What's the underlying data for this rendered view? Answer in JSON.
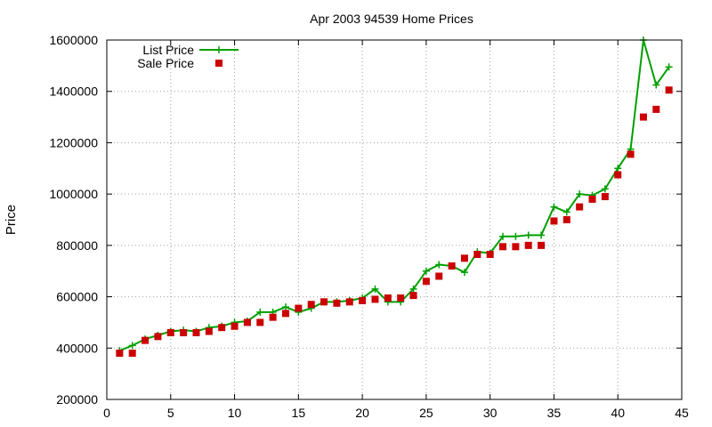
{
  "chart_data": {
    "type": "line",
    "title": "Apr 2003 94539 Home Prices",
    "xlabel": "",
    "ylabel": "Price",
    "xlim": [
      0,
      45
    ],
    "ylim": [
      200000,
      1600000
    ],
    "xticks": [
      0,
      5,
      10,
      15,
      20,
      25,
      30,
      35,
      40,
      45
    ],
    "yticks": [
      200000,
      400000,
      600000,
      800000,
      1000000,
      1200000,
      1400000,
      1600000
    ],
    "xtick_labels": [
      "0",
      "5",
      "10",
      "15",
      "20",
      "25",
      "30",
      "35",
      "40",
      "45"
    ],
    "ytick_labels": [
      "200000",
      "400000",
      "600000",
      "800000",
      "1000000",
      "1200000",
      "1400000",
      "1600000"
    ],
    "grid": true,
    "legend_position": "top-left",
    "series": [
      {
        "name": "List Price",
        "style": "lines+points",
        "marker": "plus",
        "color": "#00a000",
        "x": [
          1,
          2,
          3,
          4,
          5,
          6,
          7,
          8,
          9,
          10,
          11,
          12,
          13,
          14,
          15,
          16,
          17,
          18,
          19,
          20,
          21,
          22,
          23,
          24,
          25,
          26,
          27,
          28,
          29,
          30,
          31,
          32,
          33,
          34,
          35,
          36,
          37,
          38,
          39,
          40,
          41,
          42,
          43,
          44
        ],
        "y": [
          390000,
          410000,
          435000,
          450000,
          465000,
          470000,
          465000,
          480000,
          485000,
          500000,
          505000,
          540000,
          540000,
          560000,
          540000,
          555000,
          580000,
          580000,
          585000,
          595000,
          630000,
          580000,
          580000,
          630000,
          700000,
          725000,
          720000,
          695000,
          775000,
          770000,
          835000,
          835000,
          840000,
          840000,
          950000,
          930000,
          1000000,
          995000,
          1020000,
          1100000,
          1175000,
          1600000,
          1425000,
          1495000
        ]
      },
      {
        "name": "Sale Price",
        "style": "points",
        "marker": "square",
        "color": "#cc0000",
        "x": [
          1,
          2,
          3,
          4,
          5,
          6,
          7,
          8,
          9,
          10,
          11,
          12,
          13,
          14,
          15,
          16,
          17,
          18,
          19,
          20,
          21,
          22,
          23,
          24,
          25,
          26,
          27,
          28,
          29,
          30,
          31,
          32,
          33,
          34,
          35,
          36,
          37,
          38,
          39,
          40,
          41,
          42,
          43,
          44
        ],
        "y": [
          380000,
          380000,
          430000,
          445000,
          460000,
          460000,
          460000,
          465000,
          480000,
          485000,
          500000,
          500000,
          520000,
          535000,
          555000,
          570000,
          580000,
          575000,
          580000,
          585000,
          590000,
          595000,
          595000,
          605000,
          660000,
          680000,
          720000,
          750000,
          765000,
          765000,
          795000,
          795000,
          800000,
          800000,
          895000,
          900000,
          950000,
          980000,
          990000,
          1075000,
          1155000,
          1300000,
          1330000,
          1405000
        ]
      }
    ]
  }
}
